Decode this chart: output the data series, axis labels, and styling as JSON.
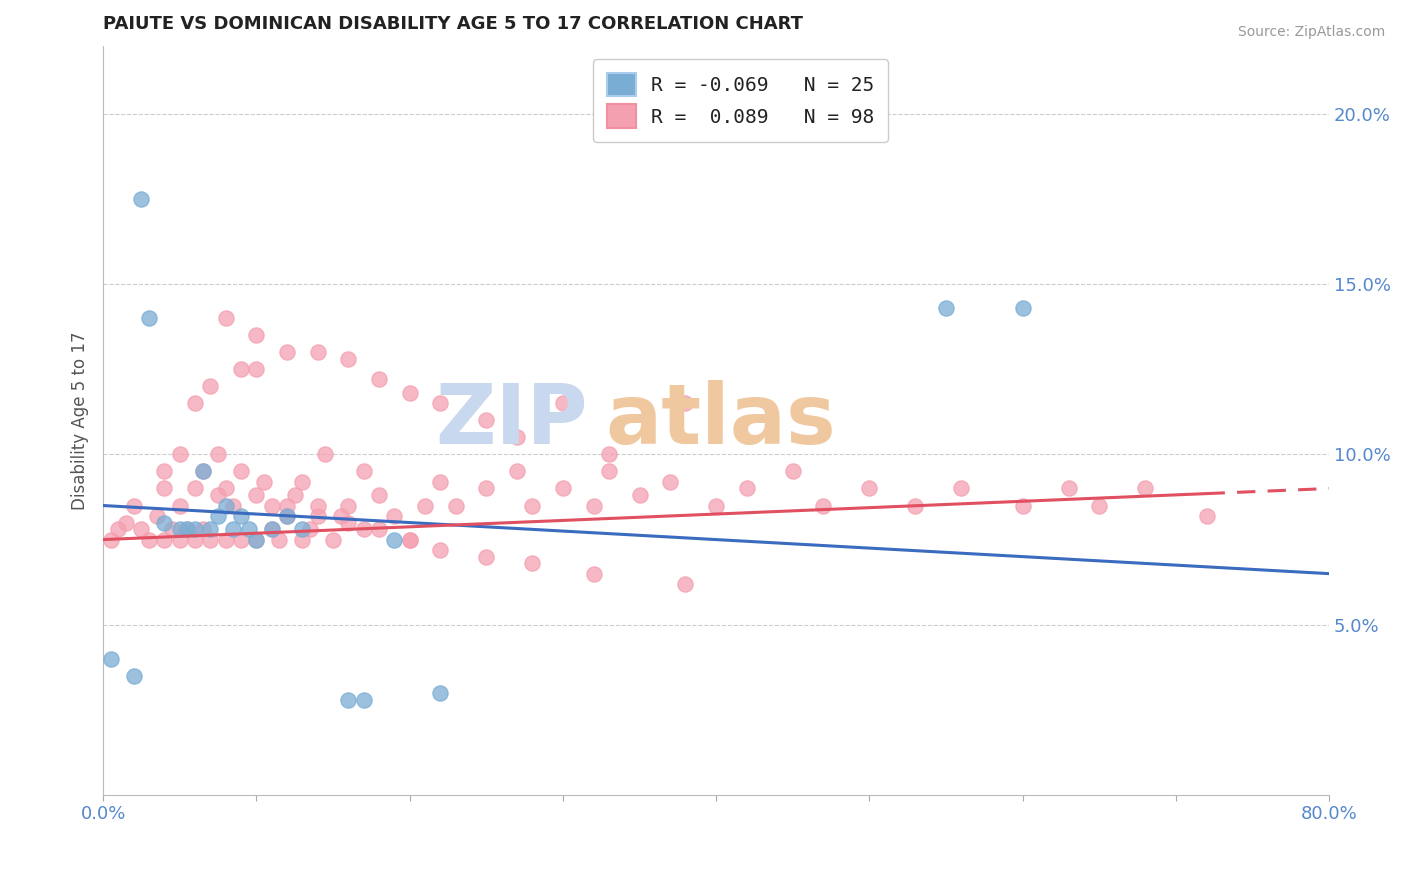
{
  "title": "PAIUTE VS DOMINICAN DISABILITY AGE 5 TO 17 CORRELATION CHART",
  "source": "Source: ZipAtlas.com",
  "ylabel": "Disability Age 5 to 17",
  "ylabel_right_ticks": [
    "5.0%",
    "10.0%",
    "15.0%",
    "20.0%"
  ],
  "ylabel_right_vals": [
    0.05,
    0.1,
    0.15,
    0.2
  ],
  "xlim": [
    0.0,
    0.8
  ],
  "ylim": [
    0.0,
    0.22
  ],
  "legend_paiute_r": "-0.069",
  "legend_paiute_n": "25",
  "legend_dom_r": "0.089",
  "legend_dom_n": "98",
  "paiute_color": "#7aadd4",
  "dominican_color": "#f4a0b0",
  "paiute_line_color": "#3a6bbf",
  "dominican_line_color": "#e05060",
  "watermark_zip_color": "#c8d8ee",
  "watermark_atlas_color": "#f0c8a0",
  "paiute_x": [
    0.005,
    0.02,
    0.025,
    0.03,
    0.04,
    0.05,
    0.055,
    0.06,
    0.065,
    0.07,
    0.075,
    0.08,
    0.085,
    0.09,
    0.095,
    0.1,
    0.11,
    0.12,
    0.13,
    0.16,
    0.17,
    0.19,
    0.22,
    0.55,
    0.6
  ],
  "paiute_y": [
    0.04,
    0.035,
    0.175,
    0.14,
    0.08,
    0.078,
    0.078,
    0.078,
    0.095,
    0.078,
    0.082,
    0.085,
    0.078,
    0.082,
    0.078,
    0.075,
    0.078,
    0.082,
    0.078,
    0.028,
    0.028,
    0.075,
    0.03,
    0.143,
    0.143
  ],
  "dom_x": [
    0.005,
    0.01,
    0.015,
    0.02,
    0.025,
    0.03,
    0.035,
    0.04,
    0.04,
    0.045,
    0.05,
    0.05,
    0.055,
    0.06,
    0.06,
    0.065,
    0.065,
    0.07,
    0.075,
    0.075,
    0.08,
    0.08,
    0.085,
    0.09,
    0.09,
    0.1,
    0.1,
    0.105,
    0.11,
    0.11,
    0.115,
    0.12,
    0.125,
    0.13,
    0.13,
    0.135,
    0.14,
    0.145,
    0.15,
    0.155,
    0.16,
    0.17,
    0.17,
    0.18,
    0.19,
    0.2,
    0.21,
    0.22,
    0.23,
    0.25,
    0.27,
    0.28,
    0.3,
    0.32,
    0.33,
    0.35,
    0.37,
    0.4,
    0.42,
    0.45,
    0.47,
    0.5,
    0.53,
    0.56,
    0.6,
    0.63,
    0.65,
    0.68,
    0.72,
    0.3,
    0.33,
    0.38,
    0.1,
    0.14,
    0.16,
    0.18,
    0.2,
    0.22,
    0.25,
    0.27,
    0.08,
    0.1,
    0.12,
    0.09,
    0.07,
    0.06,
    0.05,
    0.04,
    0.12,
    0.14,
    0.16,
    0.18,
    0.2,
    0.22,
    0.25,
    0.28,
    0.32,
    0.38
  ],
  "dom_y": [
    0.075,
    0.078,
    0.08,
    0.085,
    0.078,
    0.075,
    0.082,
    0.075,
    0.09,
    0.078,
    0.075,
    0.085,
    0.078,
    0.075,
    0.09,
    0.078,
    0.095,
    0.075,
    0.088,
    0.1,
    0.075,
    0.09,
    0.085,
    0.075,
    0.095,
    0.075,
    0.088,
    0.092,
    0.078,
    0.085,
    0.075,
    0.082,
    0.088,
    0.075,
    0.092,
    0.078,
    0.085,
    0.1,
    0.075,
    0.082,
    0.085,
    0.078,
    0.095,
    0.088,
    0.082,
    0.075,
    0.085,
    0.092,
    0.085,
    0.09,
    0.095,
    0.085,
    0.09,
    0.085,
    0.095,
    0.088,
    0.092,
    0.085,
    0.09,
    0.095,
    0.085,
    0.09,
    0.085,
    0.09,
    0.085,
    0.09,
    0.085,
    0.09,
    0.082,
    0.115,
    0.1,
    0.115,
    0.125,
    0.13,
    0.128,
    0.122,
    0.118,
    0.115,
    0.11,
    0.105,
    0.14,
    0.135,
    0.13,
    0.125,
    0.12,
    0.115,
    0.1,
    0.095,
    0.085,
    0.082,
    0.08,
    0.078,
    0.075,
    0.072,
    0.07,
    0.068,
    0.065,
    0.062
  ],
  "paiute_line_x0": 0.0,
  "paiute_line_x1": 0.8,
  "paiute_line_y0": 0.085,
  "paiute_line_y1": 0.065,
  "dom_line_x0": 0.0,
  "dom_line_x1": 0.8,
  "dom_line_y0": 0.075,
  "dom_line_y1": 0.09
}
